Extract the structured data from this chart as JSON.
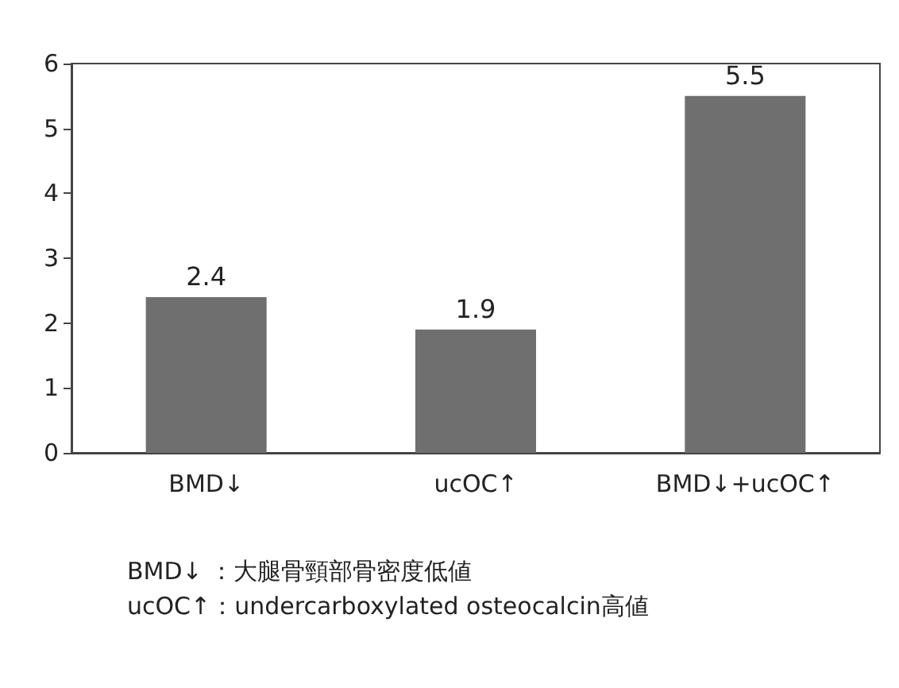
{
  "chart_data": {
    "type": "bar",
    "categories": [
      "BMD↓",
      "ucOC↑",
      "BMD↓+ucOC↑"
    ],
    "values": [
      2.4,
      1.9,
      5.5
    ],
    "color": "#6f6f6f",
    "ylim": [
      0,
      6
    ],
    "yticks": [
      0,
      1,
      2,
      3,
      4,
      5,
      6
    ],
    "data_labels": true,
    "annotations": [
      "BMD↓ ：大腿骨頸部骨密度低値",
      "ucOC↑：undercarboxylated osteocalcin高値"
    ]
  }
}
